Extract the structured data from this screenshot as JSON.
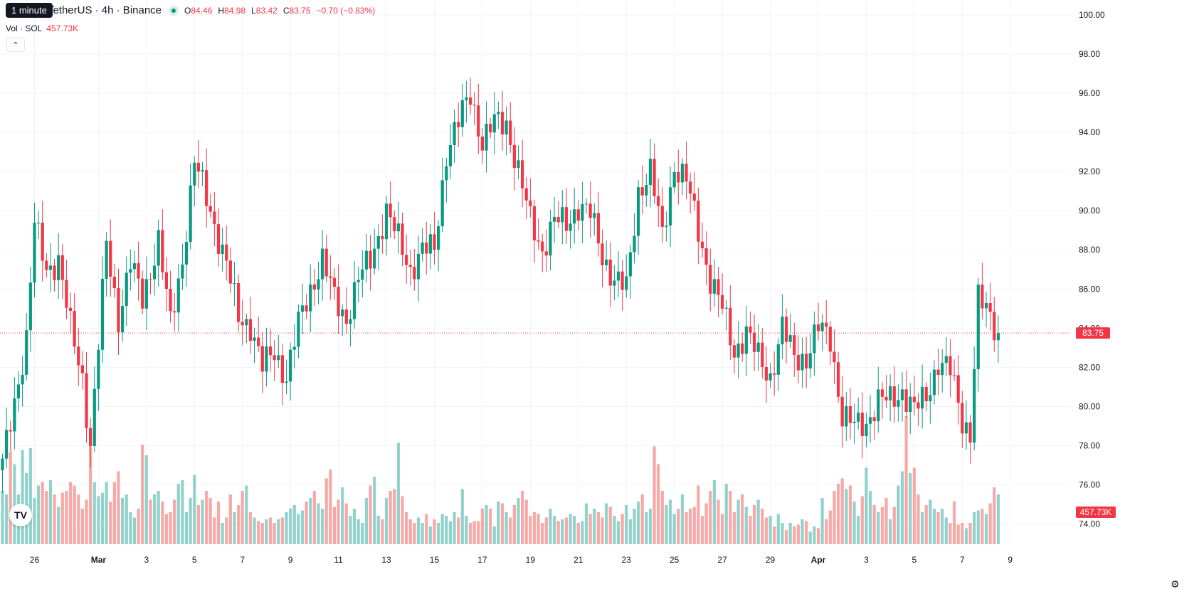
{
  "legend": {
    "symbol": "Solana / TetherUS · 4h · Binance",
    "tooltip": "1 minute",
    "open_label": "O",
    "open": "84.46",
    "high_label": "H",
    "high": "84.98",
    "low_label": "L",
    "low": "83.42",
    "close_label": "C",
    "close": "83.75",
    "change": "−0.70 (−0.83%)"
  },
  "volume": {
    "label": "Vol · SOL",
    "value": "457.73K"
  },
  "logo_text": "TV",
  "colors": {
    "up": "#089981",
    "down": "#f23645",
    "up_vol": "#92d2cc",
    "down_vol": "#f7a9a7",
    "grid": "#f0f3fa",
    "axis_text": "#131722"
  },
  "chart_data": {
    "type": "candlestick",
    "ylim": [
      73.4,
      100.4
    ],
    "y_ticks": [
      "74.00",
      "76.00",
      "78.00",
      "80.00",
      "82.00",
      "84.00",
      "86.00",
      "88.00",
      "90.00",
      "92.00",
      "94.00",
      "96.00",
      "98.00",
      "100.00"
    ],
    "x_ticks": [
      {
        "label": "26",
        "i": 8
      },
      {
        "label": "Mar",
        "i": 24
      },
      {
        "label": "3",
        "i": 36
      },
      {
        "label": "5",
        "i": 48
      },
      {
        "label": "7",
        "i": 60
      },
      {
        "label": "9",
        "i": 72
      },
      {
        "label": "11",
        "i": 84
      },
      {
        "label": "13",
        "i": 96
      },
      {
        "label": "15",
        "i": 108
      },
      {
        "label": "17",
        "i": 120
      },
      {
        "label": "19",
        "i": 132
      },
      {
        "label": "21",
        "i": 144
      },
      {
        "label": "23",
        "i": 156
      },
      {
        "label": "25",
        "i": 168
      },
      {
        "label": "27",
        "i": 180
      },
      {
        "label": "29",
        "i": 192
      },
      {
        "label": "Apr",
        "i": 204
      },
      {
        "label": "3",
        "i": 216
      },
      {
        "label": "5",
        "i": 228
      },
      {
        "label": "7",
        "i": 240
      },
      {
        "label": "9",
        "i": 252
      }
    ],
    "last_price": 83.75,
    "last_price_label": "83.75",
    "last_volume_label": "457.73K",
    "ohlc_anchors": [
      [
        0,
        77.0
      ],
      [
        6,
        83.5
      ],
      [
        8,
        89.3
      ],
      [
        11,
        87.0
      ],
      [
        14,
        87.5
      ],
      [
        17,
        84.0
      ],
      [
        20,
        81.5
      ],
      [
        22,
        78.0
      ],
      [
        26,
        88.3
      ],
      [
        29,
        84.5
      ],
      [
        32,
        87.3
      ],
      [
        35,
        85.5
      ],
      [
        39,
        88.5
      ],
      [
        42,
        84.2
      ],
      [
        45,
        87.5
      ],
      [
        48,
        92.5
      ],
      [
        52,
        90.0
      ],
      [
        56,
        87.3
      ],
      [
        59,
        84.5
      ],
      [
        62,
        84.2
      ],
      [
        65,
        82.0
      ],
      [
        68,
        82.8
      ],
      [
        71,
        81.5
      ],
      [
        74,
        84.2
      ],
      [
        77,
        86.0
      ],
      [
        80,
        87.5
      ],
      [
        83,
        85.5
      ],
      [
        86,
        84.5
      ],
      [
        89,
        86.5
      ],
      [
        92,
        87.5
      ],
      [
        96,
        90.0
      ],
      [
        99,
        88.5
      ],
      [
        102,
        87.0
      ],
      [
        105,
        88.0
      ],
      [
        108,
        88.0
      ],
      [
        111,
        93.0
      ],
      [
        114,
        94.5
      ],
      [
        117,
        96.0
      ],
      [
        120,
        93.5
      ],
      [
        123,
        94.5
      ],
      [
        126,
        94.5
      ],
      [
        129,
        92.0
      ],
      [
        132,
        89.5
      ],
      [
        135,
        88.0
      ],
      [
        138,
        89.5
      ],
      [
        141,
        89.3
      ],
      [
        144,
        90.3
      ],
      [
        147,
        89.8
      ],
      [
        150,
        87.7
      ],
      [
        153,
        86.5
      ],
      [
        156,
        86.0
      ],
      [
        159,
        91.0
      ],
      [
        162,
        92.0
      ],
      [
        165,
        88.7
      ],
      [
        168,
        92.3
      ],
      [
        171,
        91.5
      ],
      [
        174,
        89.0
      ],
      [
        177,
        86.5
      ],
      [
        180,
        85.0
      ],
      [
        183,
        82.8
      ],
      [
        186,
        83.8
      ],
      [
        189,
        82.5
      ],
      [
        192,
        81.5
      ],
      [
        195,
        84.0
      ],
      [
        198,
        82.5
      ],
      [
        201,
        82.5
      ],
      [
        204,
        84.0
      ],
      [
        207,
        83.5
      ],
      [
        210,
        79.5
      ],
      [
        213,
        79.0
      ],
      [
        216,
        79.2
      ],
      [
        219,
        80.3
      ],
      [
        222,
        80.3
      ],
      [
        225,
        80.8
      ],
      [
        228,
        79.8
      ],
      [
        231,
        80.5
      ],
      [
        234,
        82.3
      ],
      [
        237,
        81.8
      ],
      [
        240,
        79.3
      ],
      [
        242,
        78.7
      ],
      [
        244,
        85.5
      ],
      [
        247,
        84.5
      ],
      [
        249,
        83.75
      ]
    ],
    "volume_levels": [
      0.3,
      0.28,
      0.52,
      0.45,
      0.28,
      0.53,
      0.4,
      0.54,
      0.26,
      0.33,
      0.35,
      0.3,
      0.36,
      0.28,
      0.21,
      0.29,
      0.3,
      0.35,
      0.33,
      0.28,
      0.2,
      0.25,
      0.55,
      0.35,
      0.27,
      0.29,
      0.35,
      0.24,
      0.35,
      0.41,
      0.26,
      0.28,
      0.18,
      0.15,
      0.2,
      0.56,
      0.5,
      0.25,
      0.28,
      0.3,
      0.24,
      0.17,
      0.18,
      0.25,
      0.34,
      0.36,
      0.18,
      0.26,
      0.39,
      0.22,
      0.25,
      0.3,
      0.26,
      0.15,
      0.24,
      0.12,
      0.15,
      0.28,
      0.18,
      0.22,
      0.3,
      0.33,
      0.18,
      0.15,
      0.13,
      0.12,
      0.14,
      0.15,
      0.12,
      0.14,
      0.15,
      0.18,
      0.2,
      0.22,
      0.17,
      0.19,
      0.24,
      0.26,
      0.3,
      0.23,
      0.2,
      0.37,
      0.42,
      0.21,
      0.25,
      0.32,
      0.23,
      0.16,
      0.2,
      0.14,
      0.12,
      0.26,
      0.33,
      0.38,
      0.16,
      0.14,
      0.26,
      0.3,
      0.31,
      0.57,
      0.27,
      0.18,
      0.14,
      0.12,
      0.15,
      0.12,
      0.17,
      0.1,
      0.14,
      0.12,
      0.17,
      0.16,
      0.13,
      0.18,
      0.15,
      0.31,
      0.16,
      0.12,
      0.13,
      0.13,
      0.2,
      0.22,
      0.2,
      0.1,
      0.24,
      0.23,
      0.18,
      0.15,
      0.22,
      0.26,
      0.3,
      0.25,
      0.16,
      0.18,
      0.17,
      0.12,
      0.15,
      0.2,
      0.16,
      0.13,
      0.14,
      0.15,
      0.17,
      0.16,
      0.12,
      0.13,
      0.23,
      0.17,
      0.2,
      0.18,
      0.15,
      0.23,
      0.21,
      0.16,
      0.13,
      0.17,
      0.22,
      0.14,
      0.2,
      0.24,
      0.28,
      0.18,
      0.2,
      0.55,
      0.45,
      0.3,
      0.22,
      0.25,
      0.17,
      0.2,
      0.28,
      0.18,
      0.2,
      0.21,
      0.33,
      0.16,
      0.23,
      0.3,
      0.36,
      0.25,
      0.17,
      0.34,
      0.3,
      0.18,
      0.25,
      0.28,
      0.21,
      0.16,
      0.22,
      0.25,
      0.2,
      0.15,
      0.16,
      0.1,
      0.17,
      0.12,
      0.08,
      0.12,
      0.1,
      0.11,
      0.14,
      0.13,
      0.07,
      0.1,
      0.09,
      0.26,
      0.14,
      0.19,
      0.3,
      0.34,
      0.37,
      0.31,
      0.33,
      0.24,
      0.16,
      0.27,
      0.43,
      0.3,
      0.22,
      0.18,
      0.21,
      0.26,
      0.14,
      0.21,
      0.33,
      0.41,
      0.72,
      0.4,
      0.43,
      0.28,
      0.18,
      0.22,
      0.25,
      0.2,
      0.18,
      0.2,
      0.15,
      0.12,
      0.24,
      0.11,
      0.12,
      0.09,
      0.12,
      0.18,
      0.19,
      0.2,
      0.17,
      0.23,
      0.32,
      0.28,
      0.25,
      0.2,
      0.17,
      0.18,
      0.23,
      0.29,
      0.92,
      0.37,
      0.3,
      0.28,
      0.3
    ]
  }
}
